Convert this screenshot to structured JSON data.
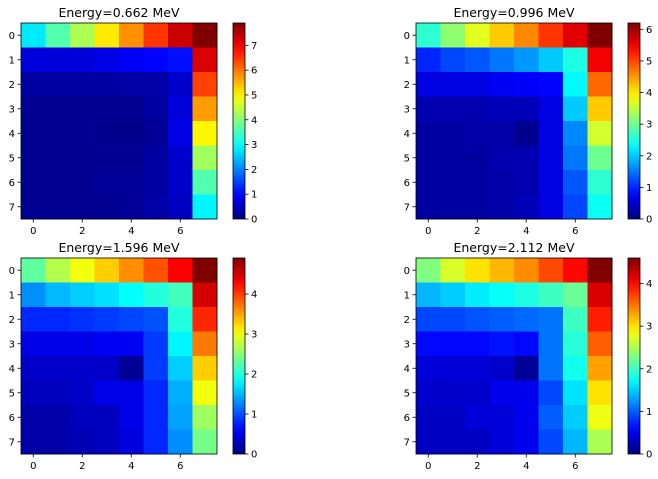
{
  "colormap": "jet",
  "chart_data": [
    {
      "type": "heatmap",
      "title": "Energy=0.662 MeV",
      "x_ticks": [
        0,
        2,
        4,
        6
      ],
      "y_ticks": [
        0,
        1,
        2,
        3,
        4,
        5,
        6,
        7
      ],
      "vmin": 0,
      "vmax": 7.9,
      "colorbar_ticks": [
        0,
        1,
        2,
        3,
        4,
        5,
        6,
        7
      ],
      "values": [
        [
          2.8,
          3.6,
          4.3,
          5.1,
          5.8,
          6.5,
          7.3,
          7.9
        ],
        [
          0.7,
          0.7,
          0.7,
          0.8,
          0.9,
          1.0,
          1.1,
          7.2
        ],
        [
          0.25,
          0.25,
          0.25,
          0.25,
          0.3,
          0.3,
          0.6,
          6.4
        ],
        [
          0.15,
          0.15,
          0.15,
          0.15,
          0.15,
          0.25,
          0.7,
          5.7
        ],
        [
          0.15,
          0.15,
          0.15,
          0.1,
          0.1,
          0.2,
          0.8,
          5.0
        ],
        [
          0.15,
          0.15,
          0.15,
          0.15,
          0.15,
          0.25,
          0.6,
          4.2
        ],
        [
          0.15,
          0.15,
          0.15,
          0.2,
          0.2,
          0.25,
          0.6,
          3.6
        ],
        [
          0.15,
          0.15,
          0.15,
          0.15,
          0.2,
          0.3,
          0.5,
          2.9
        ]
      ]
    },
    {
      "type": "heatmap",
      "title": "Energy=0.996 MeV",
      "x_ticks": [
        0,
        2,
        4,
        6
      ],
      "y_ticks": [
        0,
        1,
        2,
        3,
        4,
        5,
        6,
        7
      ],
      "vmin": 0,
      "vmax": 6.2,
      "colorbar_ticks": [
        0,
        1,
        2,
        3,
        4,
        5,
        6
      ],
      "values": [
        [
          2.6,
          3.2,
          3.7,
          4.2,
          4.6,
          5.1,
          5.6,
          6.2
        ],
        [
          1.0,
          1.2,
          1.3,
          1.5,
          1.7,
          2.0,
          2.5,
          5.5
        ],
        [
          0.6,
          0.6,
          0.6,
          0.7,
          0.75,
          0.8,
          2.3,
          4.8
        ],
        [
          0.3,
          0.3,
          0.3,
          0.35,
          0.35,
          0.6,
          2.0,
          4.2
        ],
        [
          0.2,
          0.2,
          0.25,
          0.25,
          0.1,
          0.6,
          1.6,
          3.6
        ],
        [
          0.2,
          0.2,
          0.2,
          0.3,
          0.3,
          0.6,
          1.5,
          3.0
        ],
        [
          0.2,
          0.2,
          0.2,
          0.25,
          0.3,
          0.6,
          1.3,
          2.6
        ],
        [
          0.2,
          0.2,
          0.2,
          0.25,
          0.35,
          0.6,
          1.2,
          2.4
        ]
      ]
    },
    {
      "type": "heatmap",
      "title": "Energy=1.596 MeV",
      "x_ticks": [
        0,
        2,
        4,
        6
      ],
      "y_ticks": [
        0,
        1,
        2,
        3,
        4,
        5,
        6,
        7
      ],
      "vmin": 0,
      "vmax": 4.9,
      "colorbar_ticks": [
        0,
        1,
        2,
        3,
        4
      ],
      "values": [
        [
          2.3,
          2.7,
          3.0,
          3.3,
          3.6,
          3.9,
          4.3,
          4.9
        ],
        [
          1.3,
          1.5,
          1.6,
          1.7,
          1.85,
          2.0,
          2.15,
          4.5
        ],
        [
          0.8,
          0.8,
          0.85,
          0.9,
          0.95,
          1.0,
          2.0,
          4.1
        ],
        [
          0.5,
          0.5,
          0.5,
          0.55,
          0.55,
          0.9,
          1.8,
          3.7
        ],
        [
          0.35,
          0.35,
          0.35,
          0.35,
          0.1,
          0.9,
          1.6,
          3.3
        ],
        [
          0.3,
          0.3,
          0.35,
          0.5,
          0.5,
          0.8,
          1.45,
          3.0
        ],
        [
          0.2,
          0.2,
          0.3,
          0.3,
          0.5,
          0.8,
          1.4,
          2.6
        ],
        [
          0.2,
          0.2,
          0.25,
          0.3,
          0.45,
          0.8,
          1.3,
          2.4
        ]
      ]
    },
    {
      "type": "heatmap",
      "title": "Energy=2.112 MeV",
      "x_ticks": [
        0,
        2,
        4,
        6
      ],
      "y_ticks": [
        0,
        1,
        2,
        3,
        4,
        5,
        6,
        7
      ],
      "vmin": 0,
      "vmax": 4.6,
      "colorbar_ticks": [
        0,
        1,
        2,
        3,
        4
      ],
      "values": [
        [
          2.3,
          2.7,
          3.0,
          3.2,
          3.4,
          3.7,
          4.0,
          4.6
        ],
        [
          1.4,
          1.5,
          1.65,
          1.75,
          1.85,
          2.0,
          2.2,
          4.2
        ],
        [
          0.9,
          0.9,
          0.95,
          1.0,
          1.05,
          1.1,
          2.0,
          3.9
        ],
        [
          0.6,
          0.6,
          0.6,
          0.65,
          0.6,
          1.1,
          1.9,
          3.6
        ],
        [
          0.4,
          0.4,
          0.4,
          0.35,
          0.1,
          1.1,
          1.8,
          3.3
        ],
        [
          0.35,
          0.35,
          0.35,
          0.5,
          0.5,
          0.9,
          1.6,
          3.0
        ],
        [
          0.3,
          0.3,
          0.4,
          0.4,
          0.5,
          1.0,
          1.5,
          2.8
        ],
        [
          0.3,
          0.3,
          0.3,
          0.4,
          0.5,
          0.9,
          1.4,
          2.5
        ]
      ]
    }
  ]
}
